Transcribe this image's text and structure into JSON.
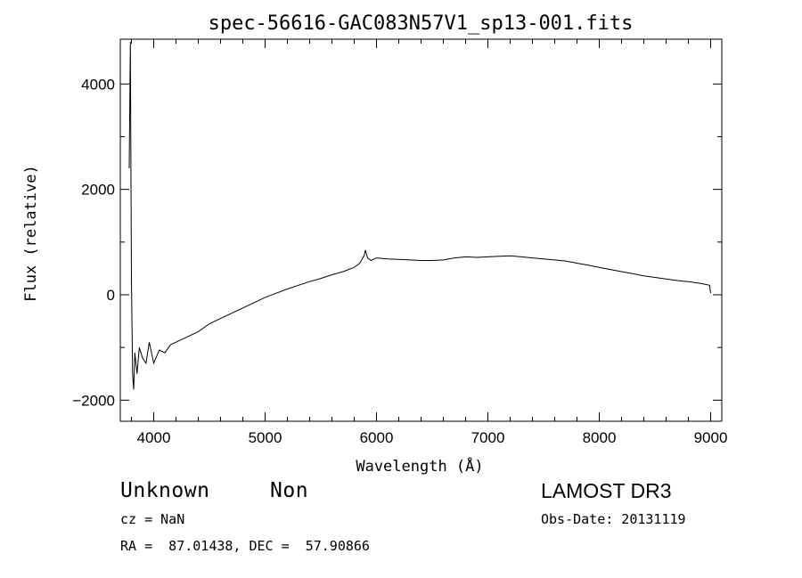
{
  "chart_data": {
    "type": "line",
    "title": "spec-56616-GAC083N57V1_sp13-001.fits",
    "xlabel": "Wavelength (Å)",
    "ylabel": "Flux (relative)",
    "xlim": [
      3700,
      9100
    ],
    "ylim": [
      -2400,
      4850
    ],
    "xticks": [
      4000,
      5000,
      6000,
      7000,
      8000,
      9000
    ],
    "yticks": [
      -2000,
      0,
      2000,
      4000
    ],
    "grid": false,
    "series": [
      {
        "x": [
          3780,
          3790,
          3800,
          3810,
          3820,
          3830,
          3850,
          3870,
          3900,
          3930,
          3960,
          4000,
          4050,
          4100,
          4150,
          4200,
          4300,
          4400,
          4500,
          4600,
          4700,
          4800,
          4900,
          5000,
          5100,
          5200,
          5300,
          5400,
          5500,
          5600,
          5700,
          5800,
          5850,
          5890,
          5900,
          5920,
          5950,
          6000,
          6100,
          6200,
          6300,
          6400,
          6500,
          6600,
          6700,
          6800,
          6900,
          7000,
          7100,
          7200,
          7300,
          7400,
          7500,
          7600,
          7700,
          7800,
          7900,
          8000,
          8100,
          8200,
          8300,
          8400,
          8500,
          8600,
          8700,
          8800,
          8900,
          8950,
          8990,
          9000
        ],
        "y": [
          2400,
          4800,
          300,
          -1500,
          -1800,
          -1100,
          -1500,
          -1000,
          -1200,
          -1300,
          -900,
          -1300,
          -1050,
          -1100,
          -950,
          -900,
          -800,
          -700,
          -550,
          -450,
          -350,
          -250,
          -150,
          -50,
          30,
          110,
          180,
          250,
          310,
          380,
          440,
          520,
          600,
          750,
          850,
          700,
          650,
          700,
          680,
          670,
          660,
          650,
          650,
          660,
          700,
          720,
          710,
          720,
          730,
          740,
          720,
          700,
          680,
          660,
          640,
          600,
          560,
          520,
          480,
          440,
          400,
          360,
          330,
          300,
          270,
          250,
          220,
          200,
          180,
          30
        ]
      }
    ]
  },
  "footer": {
    "object_type": "Unknown",
    "object_class": "Non",
    "survey": "LAMOST DR3",
    "redshift": "cz = NaN",
    "obs_date": "Obs-Date: 20131119",
    "coords": "RA =  87.01438, DEC =  57.90866"
  }
}
